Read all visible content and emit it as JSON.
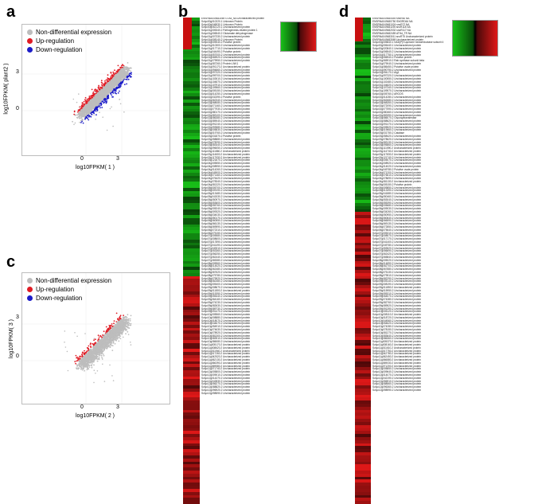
{
  "panels": {
    "a": {
      "letter": "a",
      "xlabel": "log10FPKM( 1 )",
      "ylabel": "log10FPKM( plant2 )",
      "xticks": [
        "0",
        "3"
      ],
      "yticks": [
        "3",
        "0"
      ],
      "legend": [
        {
          "label": "Non-differential expression",
          "color": "#bdbdbd"
        },
        {
          "label": "Up-regulation",
          "color": "#e01b24"
        },
        {
          "label": "Down-regulation",
          "color": "#1c1cc8"
        }
      ]
    },
    "b": {
      "letter": "b"
    },
    "c": {
      "letter": "c",
      "xlabel": "log10FPKM( 2 )",
      "ylabel": "log10FPKM( 3 )",
      "xticks": [
        "0",
        "3"
      ],
      "yticks": [
        "3",
        "0"
      ],
      "legend": [
        {
          "label": "Non-differential expression",
          "color": "#bdbdbd"
        },
        {
          "label": "Up-regulation",
          "color": "#e01b24"
        },
        {
          "label": "Down-regulation",
          "color": "#1c1cc8"
        }
      ]
    },
    "d": {
      "letter": "d"
    }
  },
  "gene_list_b": [
    "ENSRNA049483069 G7A5_NA Uncharacterized protein",
    "Solyc00g010220.1 Unknown Protein",
    "Solyc00g046930.1 Unknown Protein",
    "Solyc00g062120.1 Uncharacterized protein",
    "Solyc01g005340.2 Pathogenesis-related protein 1",
    "Solyc01g006540.2 Glutamate dehydrogenase",
    "Solyc01g007330.2 Uncharacterized protein",
    "Solyc01g008140.2 Unknown Protein",
    "Solyc01g009040.2 Putative protein",
    "Solyc01g010300.2 Uncharacterized protein",
    "Solyc01g017710.2 Uncharacterized protein",
    "Solyc01g044490.2 Putative protein",
    "Solyc01g057000.2 Uncharacterized protein",
    "Solyc01g065920.2 Uncharacterized protein",
    "Solyc01g079950.2 Uncharacterized protein",
    "Solyc01g087260.2 Protein LNK1",
    "Solyc01g091170.2 Uncharacterized protein",
    "Solyc01g094860.2 Uncharacterized protein",
    "Solyc01g097320.2 Uncharacterized protein",
    "Solyc01g099700.2 Uncharacterized protein",
    "Solyc01g102610.2 Uncharacterized protein",
    "Solyc01g104870.2 Uncharacterized protein",
    "Solyc01g107910.2 Uncharacterized protein",
    "Solyc01g109560.2 Uncharacterized protein",
    "Solyc02g005150.2 Uncharacterized protein",
    "Solyc02g014250.2 Uncharacterized protein",
    "Solyc02g032390.2 Putative protein",
    "Solyc02g062340.2 Uncharacterized protein",
    "Solyc02g068080.2 Uncharacterized protein",
    "Solyc02g071460.2 Uncharacterized protein",
    "Solyc02g077930.2 Uncharacterized protein",
    "Solyc02g080170.2 Uncharacterized protein",
    "Solyc02g083100.2 Uncharacterized protein",
    "Solyc02g086380.2 Uncharacterized protein",
    "Solyc02g089040.2 Uncharacterized protein",
    "Solyc02g091240.2 Uncharacterized protein",
    "Solyc02g093580.2 Uncharacterized protein",
    "Solyc03g005830.2 Uncharacterized protein",
    "Solyc03g019760.2 Uncharacterized protein",
    "Solyc03g031870.2 Putative protein",
    "Solyc03g058880.2 Uncharacterized protein",
    "Solyc03g078290.2 Uncharacterized protein",
    "Solyc03g083440.2 Uncharacterized protein",
    "Solyc03g096050.2 Uncharacterized protein",
    "Solyc03g111860.2 Uncharacterized protein",
    "Solyc03g114600.2 Uncharacterized protein",
    "Solyc03g117930.2 Uncharacterized protein",
    "Solyc03g121870.2 Uncharacterized protein",
    "Solyc04g005550.2 Uncharacterized protein",
    "Solyc04g008950.2 Uncharacterized protein",
    "Solyc04g014260.2 Uncharacterized protein",
    "Solyc04g049000.2 Uncharacterized protein",
    "Solyc04g071460.2 Uncharacterized protein",
    "Solyc04g076420.2 Uncharacterized protein",
    "Solyc04g078340.2 Uncharacterized protein",
    "Solyc04g081320.2 Uncharacterized protein",
    "Solyc05g005700.2 Uncharacterized protein",
    "Solyc05g009190.2 Uncharacterized protein",
    "Solyc05g013480.2 Uncharacterized protein",
    "Solyc05g041530.2 Uncharacterized protein",
    "Solyc05g050970.2 Uncharacterized protein",
    "Solyc05g053600.2 Uncharacterized protein",
    "Solyc05g055760.2 Uncharacterized protein",
    "Solyc06g005240.2 Uncharacterized protein",
    "Solyc06g009320.2 Uncharacterized protein",
    "Solyc06g034030.2 Uncharacterized protein",
    "Solyc06g050170.2 Uncharacterized protein",
    "Solyc06g060550.2 Uncharacterized protein",
    "Solyc06g066130.2 Uncharacterized protein",
    "Solyc06g069590.2 Uncharacterized protein",
    "Solyc06g072310.2 Uncharacterized protein",
    "Solyc06g075150.2 Uncharacterized protein",
    "Solyc07g005580.2 Uncharacterized protein",
    "Solyc07g008600.2 Uncharacterized protein",
    "Solyc07g017890.2 Uncharacterized protein",
    "Solyc07g041490.2 Uncharacterized protein",
    "Solyc07g049310.2 Uncharacterized protein",
    "Solyc07g053360.2 Uncharacterized protein",
    "Solyc07g056250.2 Uncharacterized protein",
    "Solyc07g062440.2 Uncharacterized protein",
    "Solyc07g065380.2 Uncharacterized protein",
    "Solyc08g005960.2 Uncharacterized protein",
    "Solyc08g014520.2 Uncharacterized protein",
    "Solyc08g062480.2 Uncharacterized protein",
    "Solyc08g067620.2 Uncharacterized protein",
    "Solyc08g075780.2 Uncharacterized protein",
    "Solyc08g079920.2 Uncharacterized protein",
    "Solyc08g082380.2 Uncharacterized protein",
    "Solyc09g005400.2 Uncharacterized protein",
    "Solyc09g008670.2 Uncharacterized protein",
    "Solyc09g011800.2 Uncharacterized protein",
    "Solyc09g015350.2 Uncharacterized protein",
    "Solyc09g055440.2 Uncharacterized protein",
    "Solyc09g064160.2 Uncharacterized protein",
    "Solyc09g074230.2 Uncharacterized protein",
    "Solyc09g082630.2 Uncharacterized protein",
    "Solyc09g089730.2 Uncharacterized protein",
    "Solyc09g091470.2 Uncharacterized protein",
    "Solyc10g005560.2 Uncharacterized protein",
    "Solyc10g008880.2 Uncharacterized protein",
    "Solyc10g018070.2 Uncharacterized protein",
    "Solyc10g044670.2 Uncharacterized protein",
    "Solyc10g054910.2 Uncharacterized protein",
    "Solyc10g074630.2 Uncharacterized protein",
    "Solyc10g078920.2 Uncharacterized protein",
    "Solyc10g081300.2 Uncharacterized protein",
    "Solyc10g083910.2 Uncharacterized protein",
    "Solyc10g086080.2 Uncharacterized protein",
    "Solyc11g005170.2 Uncharacterized protein",
    "Solyc11g008620.2 Uncharacterized protein",
    "Solyc11g011940.2 Uncharacterized protein",
    "Solyc11g017260.2 Uncharacterized protein",
    "Solyc11g042520.2 Uncharacterized protein",
    "Solyc11g062130.2 Uncharacterized protein",
    "Solyc11g066390.2 Uncharacterized protein",
    "Solyc11g069580.2 Uncharacterized protein",
    "Solyc11g071740.2 Uncharacterized protein",
    "Solyc12g005800.2 Uncharacterized protein",
    "Solyc12g009010.2 Uncharacterized protein",
    "Solyc12g014370.2 Uncharacterized protein",
    "Solyc12g042830.2 Uncharacterized protein",
    "Solyc12g056270.2 Uncharacterized protein",
    "Solyc12g088820.2 Uncharacterized protein",
    "Solyc12g096920.2 Uncharacterized protein",
    "Solyc12g098590.2 Uncharacterized protein"
  ],
  "gene_list_d": [
    "ENSRNA049480549 snoR60 NA",
    "ENSRNA049480750 SNORD64 NA",
    "ENSRNA049481024 snoR72 NA",
    "ENSRNA049481195 snoR118 NA",
    "ENSRNA049482032 snoR117 NA",
    "ENSRNA049482459 ATHd_TR NA",
    "ENSRNA049483011 snoR75 Uncharacterized protein",
    "ENSRNA049483069 Uncharacterized protein",
    "Solyc00g005840.1 NAD(P)H-quinone oxidoreductase subunit 4",
    "Solyc00g006440.1 Uncharacterized protein",
    "Solyc00g020840.1 Uncharacterized protein",
    "Solyc01g006540.2 Uncharacterized protein",
    "Solyc01g017750.1 Uncharacterized protein",
    "Solyc01g056940.2 Putative protein",
    "Solyc01g065910.2 Rab synthase subunit beta",
    "Solyc01g079040.2 Uncharacterized protein",
    "Solyc01g086450.2 Putative ovate protein",
    "Solyc01g090790.2 Uncharacterized protein",
    "Solyc01g094170.2 Alg1",
    "Solyc01g097320.2 Uncharacterized protein",
    "Solyc01g100550.2 Uncharacterized protein",
    "Solyc01g102480.2 Uncharacterized protein",
    "Solyc01g104820.2 Uncharacterized protein",
    "Solyc01g107340.2 Uncharacterized protein",
    "Solyc01g109570.2 Uncharacterized protein",
    "Solyc02g005760.2 ARGOS",
    "Solyc02g014280.2 Uncharacterized protein",
    "Solyc02g062680.2 Uncharacterized protein",
    "Solyc02g068350.2 Uncharacterized protein",
    "Solyc02g072090.2 Uncharacterized protein",
    "Solyc02g077590.2 Uncharacterized protein",
    "Solyc02g080460.2 Uncharacterized protein",
    "Solyc02g083390.2 Uncharacterized protein",
    "Solyc02g086070.2 Glycosyltransferase",
    "Solyc02g088620.2 Uncharacterized protein",
    "Solyc02g091470.2 Uncharacterized protein",
    "Solyc03g005520.2 Uncharacterized protein",
    "Solyc03g019660.2 Uncharacterized protein",
    "Solyc03g031750.2 Catalase",
    "Solyc03g058420.2 Uncharacterized protein",
    "Solyc03g078620.2 Uncharacterized protein",
    "Solyc03g083130.2 Uncharacterized protein",
    "Solyc03g095860.2 Uncharacterized protein",
    "Solyc03g111590.2 Uncharacterized protein",
    "Solyc03g114740.2 Uncharacterized protein",
    "Solyc03g117830.2 Uncharacterized protein",
    "Solyc03g121740.2 Uncharacterized protein",
    "Solyc04g005070.2 Uncharacterized protein",
    "Solyc04g008920.2 Uncharacterized protein",
    "Solyc04g014020.2 Uncharacterized protein",
    "Solyc04g049780.2 Putative ovate protein",
    "Solyc04g071200.2 Uncharacterized protein",
    "Solyc04g076610.2 Uncharacterized protein",
    "Solyc04g078690.2 Uncharacterized protein",
    "Solyc04g081130.2 Uncharacterized protein",
    "Solyc05g005150.2 Putative protein",
    "Solyc05g009850.2 Uncharacterized protein",
    "Solyc05g013390.2 Uncharacterized protein",
    "Solyc05g041880.2 Uncharacterized protein",
    "Solyc05g050460.2 Uncharacterized protein",
    "Solyc05g053040.2 Uncharacterized protein",
    "Solyc05g055390.2 Uncharacterized protein",
    "Solyc06g005680.2 Uncharacterized protein",
    "Solyc06g009030.2 Uncharacterized protein",
    "Solyc06g034260.2 Uncharacterized protein",
    "Solyc06g050950.2 Uncharacterized protein",
    "Solyc06g060640.2 Uncharacterized protein",
    "Solyc06g066590.2 Uncharacterized protein",
    "Solyc06g069130.2 Uncharacterized protein",
    "Solyc06g072850.2 Uncharacterized protein",
    "Solyc06g075640.2 Uncharacterized protein",
    "Solyc07g005310.2 Uncharacterized protein",
    "Solyc07g008570.2 Uncharacterized protein",
    "Solyc07g017170.2 Uncharacterized protein",
    "Solyc07g041400.2 Uncharacterized protein",
    "Solyc07g049780.2 Uncharacterized protein",
    "Solyc07g053520.2 Uncharacterized protein",
    "Solyc07g056690.2 Uncharacterized protein",
    "Solyc07g062420.2 Uncharacterized protein",
    "Solyc07g065840.2 Uncharacterized protein",
    "Solyc08g005020.2 Uncharacterized protein",
    "Solyc08g014890.2 Uncharacterized protein",
    "Solyc08g062700.2 Uncharacterized protein",
    "Solyc08g067880.2 Uncharacterized protein",
    "Solyc08g075130.2 Uncharacterized protein",
    "Solyc08g079510.2 Uncharacterized protein",
    "Solyc08g082290.2 Uncharacterized protein",
    "Solyc09g005140.2 Uncharacterized protein",
    "Solyc09g008190.2 Uncharacterized protein",
    "Solyc09g011850.2 Uncharacterized protein",
    "Solyc09g015950.2 Uncharacterized protein",
    "Solyc09g055310.2 Uncharacterized protein",
    "Solyc09g064570.2 Uncharacterized protein",
    "Solyc09g074380.2 Uncharacterized protein",
    "Solyc09g082760.2 Uncharacterized protein",
    "Solyc09g089520.2 Uncharacterized protein",
    "Solyc09g091390.2 Uncharacterized protein",
    "Solyc10g005120.2 Uncharacterized protein",
    "Solyc10g008110.2 Uncharacterized protein",
    "Solyc10g018720.2 Uncharacterized protein",
    "Solyc10g044560.2 Uncharacterized protein",
    "Solyc10g054620.2 Uncharacterized protein",
    "Solyc10g074280.2 Uncharacterized protein",
    "Solyc10g078150.2 Uncharacterized protein",
    "Solyc10g081270.2 Uncharacterized protein",
    "Solyc10g083640.2 Uncharacterized protein",
    "Solyc10g086360.2 Uncharacterized protein",
    "Solyc11g005370.2 Uncharacterized protein",
    "Solyc11g008160.2 Uncharacterized protein",
    "Solyc11g011610.2 Uncharacterized protein",
    "Solyc11g017750.2 Uncharacterized protein",
    "Solyc11g042780.2 Uncharacterized protein",
    "Solyc11g062450.2 Uncharacterized protein",
    "Solyc11g066880.2 Uncharacterized protein",
    "Solyc11g069030.2 Uncharacterized protein",
    "Solyc11g071200.2 Uncharacterized protein",
    "Solyc12g005850.2 Uncharacterized protein",
    "Solyc12g009640.2 Uncharacterized protein",
    "Solyc12g014070.2 Uncharacterized protein",
    "Solyc12g042190.2 Uncharacterized protein",
    "Solyc12g056910.2 Uncharacterized protein",
    "Solyc12g088560.2 Uncharacterized protein",
    "Solyc12g096360.2 Uncharacterized protein",
    "Solyc12g098990.2 Uncharacterized protein"
  ],
  "colors": {
    "up": "#e01b24",
    "down": "#1c1cc8",
    "nondiff": "#bdbdbd",
    "heat_green": "#18c018",
    "heat_red": "#e01818"
  }
}
